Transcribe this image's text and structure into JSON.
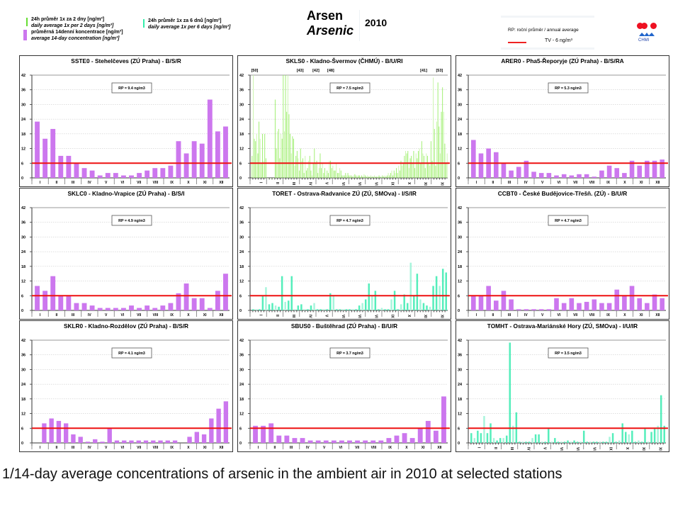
{
  "header": {
    "legend": [
      {
        "cz": "24h průměr 1x za 2 dny [ng/m³]",
        "en": "daily average 1x per 2 days [ng/m³]",
        "color": "#66dd33"
      },
      {
        "cz": "průměrná 14denní koncentrace [ng/m³]",
        "en": "average 14-day concentration [ng/m³]",
        "color": "#cc77ee"
      },
      {
        "cz": "24h průměr 1x za 6 dnů [ng/m³]",
        "en": "daily average 1x per 6 days [ng/m³]",
        "color": "#33eeaa"
      }
    ],
    "title_cz": "Arsen",
    "title_en": "Arsenic",
    "year": "2010",
    "rp_label": "RP: roční průměr / annual average",
    "tv_label": "TV - 6 ng/m³",
    "logo_label": "CHMI"
  },
  "caption": "1/14-day average concentrations of arsenic in the ambient air in 2010 at selected stations",
  "chart_data": [
    {
      "type": "bar",
      "title": "SSTE0 - Stehelčeves (ZÚ Praha) - B/S/R",
      "rp": "RP = 9.4 ng/m3",
      "series_kind": "14-day",
      "ylim": [
        0,
        42
      ],
      "yticks": [
        0,
        6,
        12,
        18,
        24,
        30,
        36,
        42
      ],
      "limit_value": 6,
      "months": [
        "I",
        "II",
        "III",
        "IV",
        "V",
        "VI",
        "VII",
        "VIII",
        "IX",
        "X",
        "XI",
        "XII"
      ],
      "values": [
        23,
        16,
        20,
        9,
        9,
        6,
        4,
        3,
        1,
        2,
        2,
        1,
        1,
        2,
        3,
        4,
        4,
        5,
        15,
        10,
        15,
        14,
        32,
        19,
        21
      ]
    },
    {
      "type": "bar",
      "title": "SKLS0 - Kladno-Švermov (ČHMÚ) - B/U/RI",
      "rp": "RP = 7.5 ng/m3",
      "series_kind": "daily-2",
      "ylim": [
        0,
        42
      ],
      "yticks": [
        0,
        6,
        12,
        18,
        24,
        30,
        36,
        42
      ],
      "limit_value": 6,
      "months": [
        "I",
        "II",
        "III",
        "IV",
        "V",
        "VI",
        "VII",
        "VIII",
        "IX",
        "X",
        "XI",
        "XII"
      ],
      "overflow_labels": [
        "[50]",
        "[43]",
        "[42]",
        "[48]",
        "[41]",
        "[53]"
      ],
      "values": [
        9,
        50,
        16,
        15,
        18,
        10,
        23,
        16,
        6,
        18,
        7,
        18,
        8,
        0,
        0,
        0,
        0,
        0,
        0,
        0,
        32,
        12,
        19,
        20,
        8,
        18,
        16,
        43,
        19,
        42,
        27,
        48,
        26,
        18,
        10,
        17,
        16,
        5,
        9,
        11,
        8,
        3,
        12,
        7,
        8,
        2,
        9,
        3,
        4,
        7,
        9,
        3,
        1,
        6,
        12,
        6,
        7,
        2,
        4,
        10,
        4,
        6,
        2,
        4,
        1,
        3,
        2,
        7,
        7,
        4,
        5,
        3,
        3,
        6,
        2,
        2,
        4,
        3,
        1,
        1,
        1,
        2,
        1,
        2,
        1,
        1,
        1,
        0.5,
        1,
        1.5,
        1,
        0.5,
        1,
        1,
        0.5,
        1,
        0.5,
        1.5,
        1,
        0.5,
        1,
        0.5,
        0.5,
        1,
        0.5,
        0.5,
        1,
        0.5,
        0.5,
        0.5,
        1,
        0.5,
        0.5,
        1,
        0.5,
        1,
        0.5,
        1,
        2,
        1,
        2,
        3,
        1,
        3,
        2,
        4,
        2,
        5,
        3,
        7,
        5,
        6,
        9,
        11,
        10,
        11,
        4,
        8,
        9,
        6,
        11,
        4,
        10,
        8,
        11,
        12,
        6,
        15,
        10,
        9,
        4,
        10,
        9,
        6,
        5,
        15,
        7,
        41,
        20,
        5,
        23,
        39,
        21,
        10,
        27,
        37,
        27,
        14,
        6,
        10
      ]
    },
    {
      "type": "bar",
      "title": "ARER0 - Pha5-Řeporyje (ZÚ Praha) - B/S/RA",
      "rp": "RP = 5.3 ng/m3",
      "series_kind": "14-day",
      "ylim": [
        0,
        42
      ],
      "yticks": [
        0,
        6,
        12,
        18,
        24,
        30,
        36,
        42
      ],
      "limit_value": 6,
      "months": [
        "I",
        "II",
        "III",
        "IV",
        "V",
        "VI",
        "VII",
        "VIII",
        "IX",
        "X",
        "XI",
        "XII"
      ],
      "values": [
        15.5,
        10,
        12,
        10.5,
        6,
        3,
        4.5,
        7,
        2.5,
        2,
        2,
        1,
        1.5,
        1,
        1.5,
        1.5,
        0.5,
        3,
        5,
        4,
        2,
        7,
        5,
        7,
        7,
        7.5
      ]
    },
    {
      "type": "bar",
      "title": "SKLC0 - Kladno-Vrapice (ZÚ Praha) - B/S/I",
      "rp": "RP = 4.9 ng/m3",
      "series_kind": "14-day",
      "ylim": [
        0,
        42
      ],
      "yticks": [
        0,
        6,
        12,
        18,
        24,
        30,
        36,
        42
      ],
      "limit_value": 6,
      "months": [
        "I",
        "II",
        "III",
        "IV",
        "V",
        "VI",
        "VII",
        "VIII",
        "IX",
        "X",
        "XI",
        "XII"
      ],
      "values": [
        10,
        8,
        14,
        6,
        6,
        3,
        3,
        2,
        1,
        1,
        1,
        1,
        2,
        1,
        2,
        1,
        2,
        3,
        7,
        11,
        5,
        5,
        1,
        8,
        15
      ]
    },
    {
      "type": "bar",
      "title": "TORET - Ostrava-Radvanice ZÚ (ZÚ, SMOva) - I/S/IR",
      "rp": "RP = 4.7 ng/m3",
      "series_kind": "daily-6",
      "ylim": [
        0,
        42
      ],
      "yticks": [
        0,
        6,
        12,
        18,
        24,
        30,
        36,
        42
      ],
      "limit_value": 6,
      "months": [
        "I",
        "II",
        "III",
        "IV",
        "V",
        "VI",
        "VII",
        "VIII",
        "IX",
        "X",
        "XI",
        "XII"
      ],
      "values": [
        0.5,
        0.5,
        0.5,
        6,
        9.5,
        2.5,
        3,
        2,
        1.5,
        14,
        3.5,
        4,
        14,
        0.5,
        2,
        2.5,
        0.5,
        0.5,
        2,
        3,
        0.5,
        0.5,
        0.5,
        0.5,
        7,
        6,
        0.5,
        0.5,
        0.5,
        0.5,
        0.5,
        0.5,
        0.5,
        2,
        3,
        4.5,
        11,
        6,
        8,
        0.5,
        1,
        0.5,
        0.5,
        4.5,
        8,
        0.5,
        2.5,
        6.5,
        3,
        19.5,
        6,
        15,
        4.5,
        3,
        2,
        1.5,
        10,
        14,
        10,
        17,
        15.5
      ]
    },
    {
      "type": "bar",
      "title": "CCBT0 - České Budějovice-Třešň. (ZÚ) - B/U/R",
      "rp": "RP = 4.7 ng/m3",
      "series_kind": "14-day",
      "ylim": [
        0,
        42
      ],
      "yticks": [
        0,
        6,
        12,
        18,
        24,
        30,
        36,
        42
      ],
      "limit_value": 6,
      "months": [
        "I",
        "II",
        "III",
        "IV",
        "V",
        "VI",
        "VII",
        "VIII",
        "IX",
        "X",
        "XI",
        "XII"
      ],
      "values": [
        6,
        6,
        10,
        4,
        8,
        4.5,
        0.5,
        0.5,
        0.5,
        0.5,
        0.5,
        5,
        3,
        5,
        3,
        3.5,
        4.5,
        3,
        3,
        8.5,
        6,
        10,
        5,
        3,
        6.5,
        5
      ]
    },
    {
      "type": "bar",
      "title": "SKLR0 - Kladno-Rozdělov (ZÚ Praha) - B/S/R",
      "rp": "RP = 4.1 ng/m3",
      "series_kind": "14-day",
      "ylim": [
        0,
        42
      ],
      "yticks": [
        0,
        6,
        12,
        18,
        24,
        30,
        36,
        42
      ],
      "limit_value": 6,
      "months": [
        "I",
        "II",
        "III",
        "IV",
        "V",
        "VI",
        "VII",
        "VIII",
        "IX",
        "X",
        "XI",
        "XII"
      ],
      "values": [
        null,
        8,
        10,
        9,
        8,
        3.5,
        2.5,
        0.5,
        1.5,
        0.5,
        6,
        1,
        1,
        1,
        1,
        1,
        1,
        1,
        1,
        1,
        null,
        2.5,
        4.5,
        3.5,
        10,
        14,
        17
      ]
    },
    {
      "type": "bar",
      "title": "SBUS0 - Buštěhrad (ZÚ Praha) - B/U/R",
      "rp": "RP = 3.7 ng/m3",
      "series_kind": "14-day",
      "ylim": [
        0,
        42
      ],
      "yticks": [
        0,
        6,
        12,
        18,
        24,
        30,
        36,
        42
      ],
      "limit_value": 6,
      "months": [
        "I",
        "II",
        "III",
        "IV",
        "V",
        "VI",
        "VII",
        "VIII",
        "IX",
        "X",
        "XI",
        "XII"
      ],
      "values": [
        7,
        7,
        8,
        3,
        3,
        2,
        2,
        1,
        1,
        1,
        1,
        1,
        1,
        1,
        1,
        1,
        1,
        2,
        3,
        4,
        2,
        6,
        9,
        5,
        19
      ]
    },
    {
      "type": "bar",
      "title": "TOMHT - Ostrava-Mariánské Hory (ZÚ, SMOva) - I/U/IR",
      "rp": "RP = 3.5 ng/m3",
      "series_kind": "daily-6",
      "ylim": [
        0,
        42
      ],
      "yticks": [
        0,
        6,
        12,
        18,
        24,
        30,
        36,
        42
      ],
      "limit_value": 6,
      "months": [
        "I",
        "II",
        "III",
        "IV",
        "V",
        "VI",
        "VII",
        "VIII",
        "IX",
        "X",
        "XI",
        "XII"
      ],
      "values": [
        4,
        2,
        5,
        4,
        11,
        4,
        8,
        2,
        1,
        2,
        2,
        3,
        41,
        7,
        12.5,
        0.5,
        0.5,
        0.5,
        0.5,
        2,
        3.5,
        3.5,
        0.5,
        0.5,
        6,
        0.5,
        2,
        0.5,
        0.5,
        0.5,
        1,
        0.5,
        1,
        0.5,
        0.5,
        5,
        0.5,
        0.5,
        0.5,
        0.5,
        0.5,
        0.5,
        0.5,
        2.5,
        4,
        0.5,
        1,
        8,
        4.5,
        3.5,
        5,
        0.5,
        1,
        0.5,
        6,
        0.5,
        4.5,
        6,
        7,
        19.5,
        7
      ]
    }
  ]
}
